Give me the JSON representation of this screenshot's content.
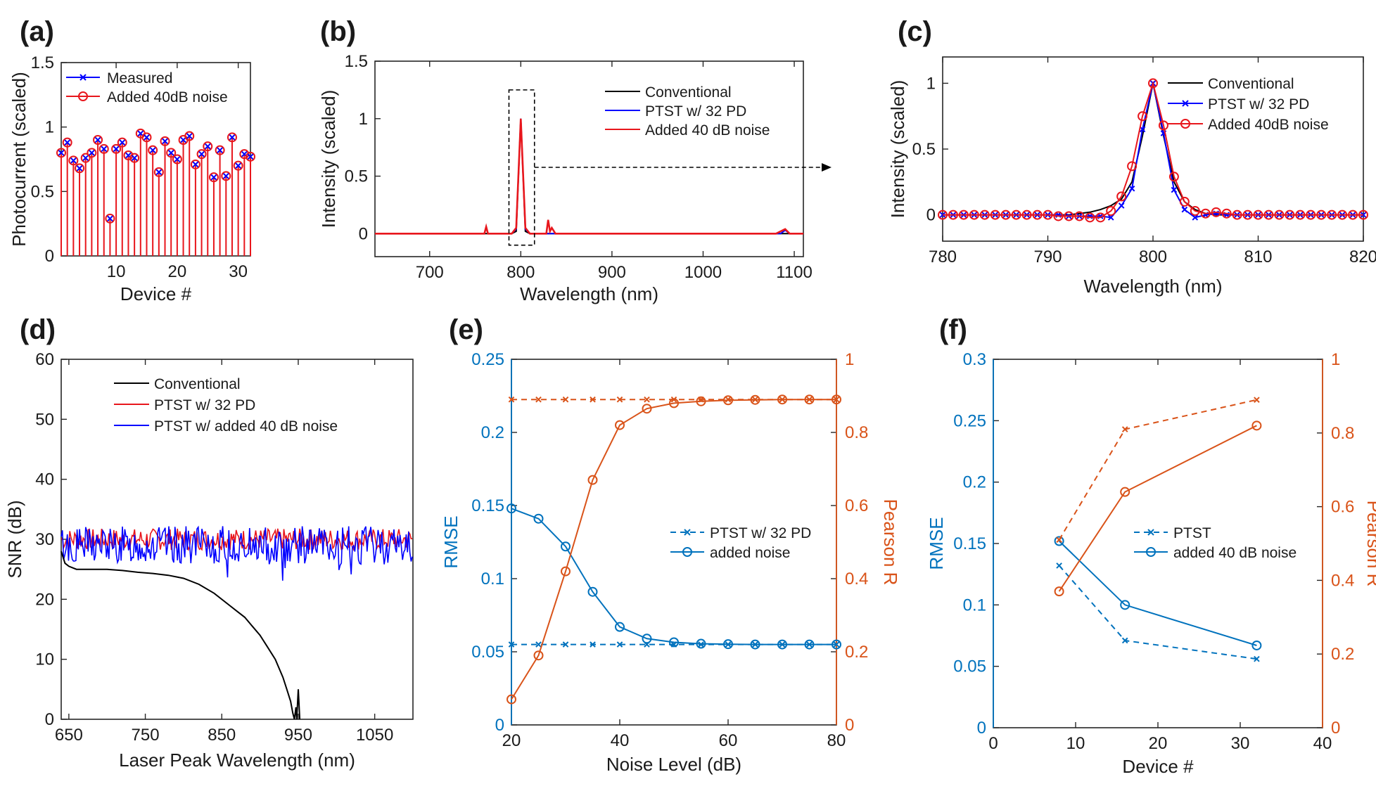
{
  "colors": {
    "black": "#000000",
    "blue": "#0000ff",
    "red": "#e8161c",
    "mblue": "#0072bd",
    "morange": "#d95319"
  },
  "chart_data": [
    {
      "id": "a",
      "panel_label": "(a)",
      "type": "stem",
      "xlabel": "Device #",
      "ylabel": "Photocurrent (scaled)",
      "xlim": [
        1,
        32
      ],
      "ylim": [
        0,
        1.5
      ],
      "xticks": [
        10,
        20,
        30
      ],
      "yticks": [
        0,
        0.5,
        1,
        1.5
      ],
      "ytick_labels": [
        "0",
        "0.5",
        "1",
        "1.5"
      ],
      "legend": [
        "Measured",
        "Added 40dB noise"
      ],
      "x": [
        1,
        2,
        3,
        4,
        5,
        6,
        7,
        8,
        9,
        10,
        11,
        12,
        13,
        14,
        15,
        16,
        17,
        18,
        19,
        20,
        21,
        22,
        23,
        24,
        25,
        26,
        27,
        28,
        29,
        30,
        31,
        32
      ],
      "measured": [
        0.8,
        0.88,
        0.74,
        0.68,
        0.76,
        0.8,
        0.9,
        0.83,
        0.29,
        0.83,
        0.88,
        0.78,
        0.76,
        0.95,
        0.92,
        0.82,
        0.65,
        0.89,
        0.8,
        0.75,
        0.9,
        0.93,
        0.71,
        0.79,
        0.85,
        0.61,
        0.82,
        0.62,
        0.92,
        0.7,
        0.79,
        0.77
      ],
      "noisy": [
        0.8,
        0.88,
        0.74,
        0.68,
        0.76,
        0.8,
        0.9,
        0.83,
        0.29,
        0.83,
        0.88,
        0.78,
        0.76,
        0.95,
        0.92,
        0.82,
        0.65,
        0.89,
        0.8,
        0.75,
        0.9,
        0.93,
        0.71,
        0.79,
        0.85,
        0.61,
        0.82,
        0.62,
        0.92,
        0.7,
        0.79,
        0.77
      ]
    },
    {
      "id": "b",
      "panel_label": "(b)",
      "type": "line",
      "xlabel": "Wavelength (nm)",
      "ylabel": "Intensity (scaled)",
      "xlim": [
        640,
        1110
      ],
      "ylim": [
        -0.2,
        1.5
      ],
      "xticks": [
        700,
        800,
        900,
        1000,
        1100
      ],
      "yticks": [
        0,
        0.5,
        1,
        1.5
      ],
      "ytick_labels": [
        "0",
        "0.5",
        "1",
        "1.5"
      ],
      "zoom_box": {
        "x": [
          787,
          815
        ],
        "y": [
          -0.1,
          1.25
        ]
      },
      "series": [
        {
          "name": "Conventional",
          "color_key": "black",
          "x": [
            640,
            780,
            790,
            795,
            800,
            805,
            810,
            830,
            1110
          ],
          "y": [
            0,
            0,
            0,
            0.02,
            1.0,
            0.02,
            0,
            0,
            0
          ]
        },
        {
          "name": "PTST w/ 32 PD",
          "color_key": "blue",
          "x": [
            640,
            760,
            762,
            764,
            790,
            795,
            800,
            805,
            810,
            1085,
            1090,
            1095,
            1110
          ],
          "y": [
            0,
            0,
            0.05,
            0,
            0,
            0.04,
            1.0,
            0.04,
            0,
            0,
            0.03,
            0,
            0
          ]
        },
        {
          "name": "Added 40 dB noise",
          "color_key": "red",
          "x": [
            640,
            760,
            762,
            764,
            790,
            795,
            800,
            805,
            810,
            828,
            830,
            832,
            834,
            838,
            1080,
            1090,
            1095,
            1110
          ],
          "y": [
            0,
            0,
            0.06,
            0,
            0,
            0.05,
            1.0,
            0.05,
            0,
            0,
            0.12,
            0.02,
            0.05,
            0,
            0,
            0.04,
            0,
            0
          ]
        }
      ]
    },
    {
      "id": "c",
      "panel_label": "(c)",
      "type": "line",
      "xlabel": "Wavelength (nm)",
      "ylabel": "Intensity (scaled)",
      "xlim": [
        780,
        820
      ],
      "ylim": [
        -0.2,
        1.2
      ],
      "xticks": [
        780,
        790,
        800,
        810,
        820
      ],
      "yticks": [
        0,
        0.5,
        1
      ],
      "ytick_labels": [
        "0",
        "0.5",
        "1"
      ],
      "series": [
        {
          "name": "Conventional",
          "color_key": "black",
          "marker": "none",
          "x": [
            780,
            782,
            784,
            786,
            788,
            790,
            792,
            793,
            794,
            795,
            796,
            797,
            798,
            799,
            800,
            801,
            802,
            803,
            804,
            805,
            806,
            808,
            810,
            812,
            814,
            816,
            818,
            820
          ],
          "y": [
            0,
            0,
            0,
            0,
            0,
            0,
            0,
            0.01,
            0.02,
            0.04,
            0.07,
            0.12,
            0.25,
            0.6,
            1.0,
            0.6,
            0.25,
            0.1,
            0.04,
            0.01,
            0,
            0,
            0,
            0,
            0,
            0,
            0,
            0
          ]
        },
        {
          "name": "PTST w/ 32 PD",
          "color_key": "blue",
          "marker": "x",
          "x": [
            780,
            781,
            782,
            783,
            784,
            785,
            786,
            787,
            788,
            789,
            790,
            791,
            792,
            793,
            794,
            795,
            796,
            797,
            798,
            799,
            800,
            801,
            802,
            803,
            804,
            805,
            806,
            807,
            808,
            809,
            810,
            811,
            812,
            813,
            814,
            815,
            816,
            817,
            818,
            819,
            820
          ],
          "y": [
            0,
            0,
            0,
            0,
            0,
            0,
            0,
            0,
            0,
            0,
            0,
            0,
            -0.01,
            -0.01,
            -0.01,
            -0.01,
            -0.02,
            0.07,
            0.2,
            0.65,
            1.0,
            0.62,
            0.19,
            0.04,
            -0.02,
            0,
            0.01,
            0,
            0,
            0,
            0,
            0,
            0,
            0,
            0,
            0,
            0,
            0,
            0,
            0,
            0
          ]
        },
        {
          "name": "Added 40dB noise",
          "color_key": "red",
          "marker": "o",
          "x": [
            780,
            781,
            782,
            783,
            784,
            785,
            786,
            787,
            788,
            789,
            790,
            791,
            792,
            793,
            794,
            795,
            796,
            797,
            798,
            799,
            800,
            801,
            802,
            803,
            804,
            805,
            806,
            807,
            808,
            809,
            810,
            811,
            812,
            813,
            814,
            815,
            816,
            817,
            818,
            819,
            820
          ],
          "y": [
            0,
            0,
            0,
            0,
            0,
            0,
            0,
            0,
            0,
            0,
            0,
            -0.01,
            -0.01,
            -0.01,
            -0.02,
            -0.02,
            0.03,
            0.14,
            0.37,
            0.75,
            1.0,
            0.68,
            0.29,
            0.1,
            0.03,
            0.01,
            0.02,
            0.01,
            0,
            0,
            0,
            0,
            0,
            0,
            0,
            0,
            0,
            0,
            0,
            0,
            0
          ]
        }
      ]
    },
    {
      "id": "d",
      "panel_label": "(d)",
      "type": "line",
      "xlabel": "Laser Peak Wavelength (nm)",
      "ylabel": "SNR (dB)",
      "xlim": [
        640,
        1100
      ],
      "ylim": [
        0,
        60
      ],
      "xticks": [
        650,
        750,
        850,
        950,
        1050
      ],
      "yticks": [
        0,
        10,
        20,
        30,
        40,
        50,
        60
      ],
      "ytick_labels": [
        "0",
        "10",
        "20",
        "30",
        "40",
        "50",
        "60"
      ],
      "series": [
        {
          "name": "Conventional",
          "color_key": "black",
          "x": [
            640,
            645,
            650,
            660,
            680,
            700,
            720,
            740,
            760,
            780,
            800,
            820,
            840,
            860,
            870,
            880,
            890,
            900,
            910,
            920,
            930,
            935,
            940,
            943,
            945,
            947,
            948,
            950,
            952
          ],
          "y": [
            28,
            26,
            25.5,
            25,
            25,
            25,
            24.8,
            24.5,
            24.3,
            24,
            23.5,
            22.5,
            21,
            19,
            18,
            17,
            15.5,
            14,
            12,
            10,
            7,
            5,
            3,
            1,
            0,
            2,
            0,
            5,
            0
          ]
        },
        {
          "name": "PTST w/ 32 PD",
          "color_key": "red",
          "baseline": 30,
          "amp": 1.8,
          "seed": 7
        },
        {
          "name": "PTST w/ added 40 dB noise",
          "color_key": "blue",
          "baseline": 29,
          "amp": 3.2,
          "seed": 13
        }
      ]
    },
    {
      "id": "e",
      "panel_label": "(e)",
      "type": "line-dual-axis",
      "xlabel": "Noise Level (dB)",
      "ylabel": "RMSE",
      "y2label": "Pearson R",
      "xlim": [
        20,
        80
      ],
      "ylim": [
        0,
        0.25
      ],
      "y2lim": [
        0,
        1
      ],
      "xticks": [
        20,
        40,
        60,
        80
      ],
      "yticks": [
        0,
        0.05,
        0.1,
        0.15,
        0.2,
        0.25
      ],
      "ytick_labels": [
        "0",
        "0.05",
        "0.1",
        "0.15",
        "0.2",
        "0.25"
      ],
      "y2ticks": [
        0,
        0.2,
        0.4,
        0.6,
        0.8,
        1
      ],
      "y2tick_labels": [
        "0",
        "0.2",
        "0.4",
        "0.6",
        "0.8",
        "1"
      ],
      "x": [
        20,
        25,
        30,
        35,
        40,
        45,
        50,
        55,
        60,
        65,
        70,
        75,
        80
      ],
      "series": [
        {
          "name": "PTST w/ 32 PD",
          "axis": "left",
          "color_key": "mblue",
          "dash": true,
          "marker": "x",
          "values": [
            0.055,
            0.055,
            0.055,
            0.055,
            0.055,
            0.055,
            0.055,
            0.055,
            0.055,
            0.055,
            0.055,
            0.055,
            0.055
          ]
        },
        {
          "name": "added noise",
          "axis": "left",
          "color_key": "mblue",
          "dash": false,
          "marker": "o",
          "values": [
            0.148,
            0.141,
            0.122,
            0.091,
            0.067,
            0.059,
            0.0565,
            0.0555,
            0.0552,
            0.055,
            0.055,
            0.055,
            0.055
          ]
        },
        {
          "name": "PTST w/ 32 PD (Pearson R)",
          "axis": "right",
          "color_key": "morange",
          "dash": true,
          "marker": "x",
          "values": [
            0.89,
            0.89,
            0.89,
            0.89,
            0.89,
            0.89,
            0.89,
            0.89,
            0.89,
            0.89,
            0.89,
            0.89,
            0.89
          ]
        },
        {
          "name": "added noise (Pearson R)",
          "axis": "right",
          "color_key": "morange",
          "dash": false,
          "marker": "o",
          "values": [
            0.07,
            0.19,
            0.42,
            0.67,
            0.82,
            0.865,
            0.88,
            0.885,
            0.888,
            0.889,
            0.89,
            0.89,
            0.89
          ]
        }
      ],
      "legend": [
        "PTST w/ 32 PD",
        "added noise"
      ]
    },
    {
      "id": "f",
      "panel_label": "(f)",
      "type": "line-dual-axis",
      "xlabel": "Device #",
      "ylabel": "RMSE",
      "y2label": "Pearson R",
      "xlim": [
        0,
        40
      ],
      "ylim": [
        0,
        0.3
      ],
      "y2lim": [
        0,
        1
      ],
      "xticks": [
        0,
        10,
        20,
        30,
        40
      ],
      "yticks": [
        0,
        0.05,
        0.1,
        0.15,
        0.2,
        0.25,
        0.3
      ],
      "ytick_labels": [
        "0",
        "0.05",
        "0.1",
        "0.15",
        "0.2",
        "0.25",
        "0.3"
      ],
      "y2ticks": [
        0,
        0.2,
        0.4,
        0.6,
        0.8,
        1
      ],
      "y2tick_labels": [
        "0",
        "0.2",
        "0.4",
        "0.6",
        "0.8",
        "1"
      ],
      "x": [
        8,
        16,
        32
      ],
      "series": [
        {
          "name": "PTST",
          "axis": "left",
          "color_key": "mblue",
          "dash": true,
          "marker": "x",
          "values": [
            0.132,
            0.071,
            0.056
          ]
        },
        {
          "name": "added 40 dB noise",
          "axis": "left",
          "color_key": "mblue",
          "dash": false,
          "marker": "o",
          "values": [
            0.152,
            0.1,
            0.067
          ]
        },
        {
          "name": "PTST (Pearson R)",
          "axis": "right",
          "color_key": "morange",
          "dash": true,
          "marker": "x",
          "values": [
            0.51,
            0.81,
            0.89
          ]
        },
        {
          "name": "added 40 dB noise (Pearson R)",
          "axis": "right",
          "color_key": "morange",
          "dash": false,
          "marker": "o",
          "values": [
            0.37,
            0.64,
            0.82
          ]
        }
      ],
      "legend": [
        "PTST",
        "added 40 dB noise"
      ]
    }
  ]
}
